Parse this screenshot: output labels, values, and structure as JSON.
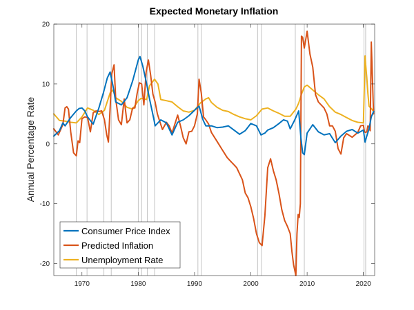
{
  "chart_data": {
    "type": "line",
    "title": "Expected Monetary Inflation",
    "xlabel": "",
    "ylabel": "Annual Percentage Rate",
    "xlim": [
      1965,
      2022
    ],
    "ylim": [
      -22,
      20
    ],
    "x_ticks": [
      "1970",
      "1980",
      "1990",
      "2000",
      "2010",
      "2020"
    ],
    "y_ticks": [
      "20",
      "10",
      "0",
      "-10",
      "-20"
    ],
    "legend_position": "bottom-left",
    "grid": false,
    "recession_lines": [
      1969.0,
      1970.9,
      1973.9,
      1975.2,
      1980.0,
      1980.6,
      1981.6,
      1982.9,
      1990.6,
      1991.2,
      2001.2,
      2001.9,
      2007.9,
      2009.5,
      2020.1,
      2020.4
    ],
    "series": [
      {
        "name": "Consumer Price Index",
        "color": "#0072BD",
        "x": [
          1965,
          1966,
          1966.6,
          1967,
          1968,
          1969,
          1969.5,
          1970,
          1970.5,
          1971,
          1972,
          1973,
          1973.8,
          1974.5,
          1975,
          1975.5,
          1976,
          1977,
          1978,
          1979,
          1980,
          1980.3,
          1980.8,
          1981.5,
          1982,
          1982.8,
          1983,
          1984,
          1985,
          1986,
          1987,
          1988,
          1989,
          1990,
          1990.8,
          1991.5,
          1992,
          1993,
          1994,
          1995,
          1996,
          1997,
          1998,
          1999,
          2000,
          2001,
          2001.8,
          2002.5,
          2003,
          2004,
          2005,
          2005.8,
          2006.5,
          2007,
          2007.8,
          2008.5,
          2008.9,
          2009.2,
          2009.5,
          2010,
          2011,
          2012,
          2013,
          2014,
          2015,
          2016,
          2017,
          2018,
          2019,
          2020,
          2020.3,
          2020.6,
          2021,
          2021.4,
          2021.8
        ],
        "y": [
          1.3,
          2.2,
          3.5,
          3.0,
          4.4,
          5.5,
          5.9,
          6.0,
          5.5,
          4.5,
          3.3,
          6.0,
          8.5,
          11.0,
          12.0,
          9.7,
          7.0,
          6.5,
          7.7,
          10.5,
          14.0,
          14.6,
          13.0,
          10.0,
          7.5,
          4.0,
          3.0,
          4.0,
          3.5,
          1.5,
          3.6,
          4.0,
          4.7,
          5.6,
          6.3,
          4.0,
          3.0,
          3.0,
          2.7,
          2.8,
          3.0,
          2.3,
          1.6,
          2.2,
          3.4,
          3.0,
          1.5,
          1.8,
          2.3,
          2.7,
          3.4,
          4.0,
          3.8,
          2.5,
          4.0,
          5.5,
          1.0,
          -1.5,
          -1.8,
          1.8,
          3.2,
          2.0,
          1.5,
          1.7,
          0.2,
          1.3,
          2.1,
          2.4,
          1.8,
          2.3,
          0.3,
          1.3,
          2.5,
          4.5,
          5.4
        ]
      },
      {
        "name": "Predicted Inflation",
        "color": "#D95319",
        "x": [
          1965,
          1965.8,
          1966.6,
          1967,
          1967.3,
          1967.6,
          1968,
          1968.5,
          1969,
          1969.3,
          1969.6,
          1970,
          1970.5,
          1971,
          1971.5,
          1972,
          1972.5,
          1973,
          1973.5,
          1974,
          1974.4,
          1974.7,
          1975,
          1975.3,
          1975.7,
          1976,
          1976.5,
          1977,
          1977.5,
          1978,
          1978.5,
          1979,
          1979.4,
          1979.8,
          1980.2,
          1980.6,
          1981,
          1981.4,
          1981.8,
          1982.2,
          1982.6,
          1983,
          1983.4,
          1983.8,
          1984.3,
          1985,
          1985.5,
          1986,
          1987,
          1987.5,
          1988,
          1988.5,
          1989,
          1989.5,
          1990,
          1990.5,
          1990.8,
          1991.2,
          1991.6,
          1992,
          1992.5,
          1993,
          1994,
          1995,
          1995.8,
          1996.5,
          1997,
          1997.5,
          1998,
          1998.5,
          1999,
          1999.5,
          2000,
          2000.5,
          2001,
          2001.5,
          2002,
          2002.5,
          2003,
          2003.5,
          2004,
          2004.5,
          2005,
          2005.5,
          2006,
          2006.5,
          2007,
          2007.3,
          2007.6,
          2008,
          2008.2,
          2008.4,
          2008.6,
          2008.8,
          2009,
          2009.2,
          2009.5,
          2010,
          2010.5,
          2011,
          2011.5,
          2012,
          2013,
          2013.5,
          2014,
          2014.5,
          2015,
          2015.5,
          2016,
          2016.5,
          2017,
          2018,
          2019,
          2019.5,
          2020,
          2020.2,
          2020.4,
          2020.6,
          2020.8,
          2021,
          2021.2,
          2021.4,
          2021.8
        ],
        "y": [
          2.5,
          1.5,
          3.2,
          6.0,
          6.2,
          5.8,
          2.0,
          -1.5,
          -2.0,
          0.5,
          0.2,
          4.2,
          4.5,
          4.4,
          2.0,
          5.2,
          5.5,
          5.4,
          5.5,
          4.0,
          1.5,
          0.3,
          6.0,
          11.7,
          13.2,
          7.5,
          4.0,
          3.2,
          7.5,
          3.5,
          4.0,
          6.0,
          6.0,
          8.4,
          10.2,
          10.0,
          6.5,
          12.0,
          14.0,
          11.5,
          8.3,
          7.0,
          5.0,
          3.8,
          2.4,
          3.6,
          3.0,
          1.8,
          4.8,
          3.0,
          1.0,
          0.0,
          2.0,
          2.1,
          3.0,
          5.0,
          10.8,
          8.5,
          4.5,
          4.0,
          3.3,
          1.9,
          0.4,
          -1.1,
          -2.3,
          -3.0,
          -3.5,
          -4.0,
          -5.0,
          -6.0,
          -8.2,
          -9.0,
          -10.5,
          -12.5,
          -15.0,
          -16.5,
          -17.0,
          -12.0,
          -4.0,
          -2.5,
          -4.5,
          -6.0,
          -8.3,
          -11.0,
          -12.8,
          -13.8,
          -15.0,
          -18.0,
          -20.2,
          -22.0,
          -15.0,
          -11.8,
          -12.3,
          -10.0,
          18.0,
          17.8,
          16.0,
          18.8,
          15.0,
          12.8,
          8.2,
          7.0,
          6.0,
          5.0,
          3.0,
          3.0,
          2.1,
          -0.8,
          -1.7,
          1.0,
          1.7,
          1.1,
          1.9,
          3.0,
          3.1,
          2.0,
          1.9,
          2.0,
          3.0,
          2.8,
          2.2,
          17.0,
          5.0
        ]
      },
      {
        "name": "Unemployment Rate",
        "color": "#EDB120",
        "x": [
          1965,
          1966,
          1967,
          1968,
          1969,
          1970,
          1971,
          1972,
          1973,
          1974,
          1975,
          1975.5,
          1976,
          1977,
          1978,
          1979,
          1980,
          1980.5,
          1981,
          1981.5,
          1982,
          1982.9,
          1983.5,
          1984,
          1985,
          1986,
          1987,
          1988,
          1989,
          1990,
          1991,
          1992,
          1992.5,
          1993,
          1994,
          1995,
          1996,
          1997,
          1998,
          1999,
          2000,
          2001,
          2002,
          2003,
          2004,
          2005,
          2006,
          2007,
          2008,
          2008.5,
          2009,
          2009.5,
          2010,
          2011,
          2012,
          2013,
          2014,
          2015,
          2016,
          2017,
          2018,
          2019,
          2020,
          2020.3,
          2020.4,
          2020.6,
          2020.8,
          2021,
          2021.5,
          2021.8
        ],
        "y": [
          5.0,
          3.9,
          3.8,
          3.6,
          3.5,
          4.5,
          6.0,
          5.6,
          4.9,
          5.6,
          8.5,
          9.0,
          7.7,
          7.1,
          6.1,
          5.8,
          7.2,
          7.6,
          7.5,
          7.4,
          9.7,
          10.8,
          10.0,
          7.4,
          7.2,
          7.0,
          6.2,
          5.5,
          5.3,
          5.6,
          6.8,
          7.5,
          7.7,
          6.9,
          6.1,
          5.6,
          5.4,
          4.9,
          4.5,
          4.2,
          4.0,
          4.7,
          5.8,
          6.0,
          5.5,
          5.1,
          4.6,
          4.6,
          5.8,
          6.8,
          8.3,
          9.5,
          9.8,
          9.0,
          8.2,
          7.5,
          6.2,
          5.3,
          4.9,
          4.4,
          3.9,
          3.6,
          3.5,
          14.7,
          13.3,
          11.1,
          8.4,
          6.3,
          5.8,
          5.4
        ]
      }
    ]
  }
}
